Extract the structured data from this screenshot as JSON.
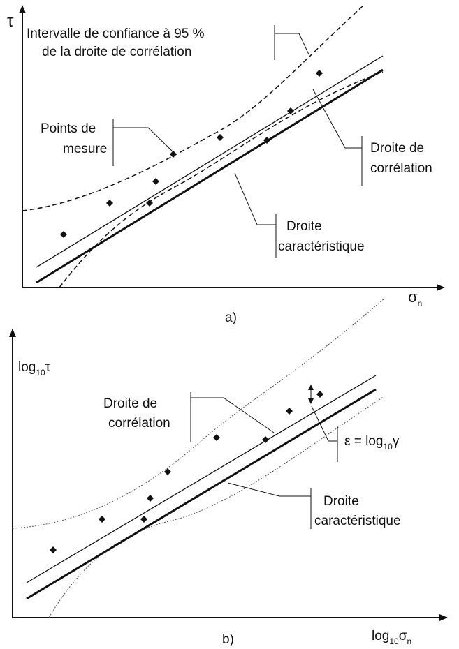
{
  "panel_a": {
    "y_label": "τ",
    "x_label": {
      "base": "σ",
      "sub": "n"
    },
    "caption": "a)",
    "confidence": [
      "Intervalle de confiance à 95 %",
      "de la droite de corrélation"
    ],
    "points": [
      "Points de",
      "mesure"
    ],
    "correlation": [
      "Droite de",
      "corrélation"
    ],
    "characteristic": [
      "Droite",
      "caractéristique"
    ]
  },
  "panel_b": {
    "y_label": {
      "base": "log",
      "sub": "10",
      "tail": "τ"
    },
    "x_label": {
      "base": "log",
      "sub": "10",
      "tail": "σ",
      "sub2": "n"
    },
    "caption": "b)",
    "correlation": [
      "Droite de",
      "corrélation"
    ],
    "epsilon": {
      "base": "ε = log",
      "sub": "10",
      "tail": "γ"
    },
    "characteristic": [
      "Droite",
      "caractéristique"
    ]
  }
}
